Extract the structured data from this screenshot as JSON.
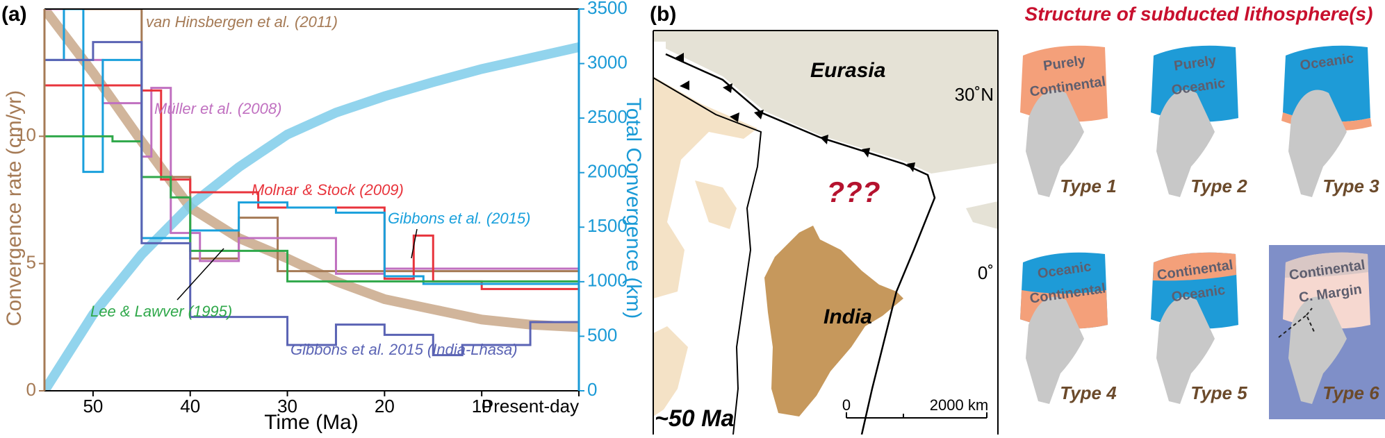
{
  "chart_data": {
    "type": "line",
    "panel_label": "(a)",
    "x_label": "Time (Ma)",
    "y_label": "Convergence rate (cm/yr)",
    "y2_label": "Total Convergence (km)",
    "xlim": [
      55,
      0
    ],
    "xticks": [
      50,
      40,
      30,
      20,
      10,
      {
        "value": 0,
        "label": "Present-day"
      }
    ],
    "ylim": [
      0,
      15
    ],
    "yticks": [
      0,
      5,
      10
    ],
    "y2lim": [
      0,
      3500
    ],
    "y2ticks": [
      0,
      500,
      1000,
      1500,
      2000,
      2500,
      3000,
      3500
    ],
    "series": [
      {
        "color": "#c9a88a",
        "x": [
          55,
          50,
          45,
          40,
          35,
          30,
          25,
          20,
          15,
          10,
          5,
          0
        ],
        "values": [
          15,
          12.5,
          9.8,
          7.2,
          6,
          5.2,
          4.3,
          3.6,
          3.2,
          2.8,
          2.6,
          2.5
        ]
      },
      {
        "color": "#7fcdea",
        "axis": "y2",
        "x": [
          55,
          50,
          45,
          40,
          35,
          30,
          25,
          20,
          15,
          10,
          5,
          0
        ],
        "values": [
          0,
          700,
          1250,
          1700,
          2050,
          2350,
          2550,
          2700,
          2830,
          2950,
          3050,
          3150
        ]
      },
      {
        "name": "van Hinsbergen et al. (2011)",
        "color": "#a57a55",
        "x": [
          55,
          45,
          45,
          40,
          40,
          35,
          35,
          31,
          31,
          0
        ],
        "values": [
          15,
          15,
          8.4,
          8.4,
          5.2,
          5.2,
          6.8,
          6.8,
          4.7,
          4.7
        ]
      },
      {
        "name": "Müller et al. (2008)",
        "color": "#c070c0",
        "x": [
          55,
          53,
          53,
          49,
          49,
          45,
          45,
          44,
          44,
          42,
          42,
          39,
          39,
          35,
          35,
          25,
          25,
          20,
          20,
          0
        ],
        "values": [
          15,
          15,
          13,
          13,
          11.3,
          11.3,
          9.2,
          9.2,
          11.9,
          11.9,
          6.2,
          6.2,
          5.1,
          5.1,
          6,
          6,
          4.6,
          4.6,
          4.8,
          4.8
        ]
      },
      {
        "name": "Molnar & Stock (2009)",
        "color": "#e8343c",
        "x": [
          55,
          45,
          45,
          43,
          43,
          40,
          40,
          33,
          33,
          20,
          20,
          17,
          17,
          15,
          15,
          10,
          10,
          0
        ],
        "values": [
          12,
          12,
          11.8,
          11.8,
          8.3,
          8.3,
          7.8,
          7.8,
          7.2,
          7.2,
          4.4,
          4.4,
          6.1,
          6.1,
          4.3,
          4.3,
          4,
          4
        ]
      },
      {
        "name": "Gibbons et al. (2015)",
        "color": "#19a0dc",
        "x": [
          55,
          53,
          53,
          51,
          51,
          49,
          49,
          45,
          45,
          40,
          40,
          35,
          35,
          30,
          30,
          25,
          25,
          20,
          20,
          16,
          16,
          0
        ],
        "values": [
          13,
          13,
          15,
          15,
          8.6,
          8.6,
          13,
          13,
          6,
          6,
          6.3,
          6.3,
          7.4,
          7.4,
          7.2,
          7.2,
          7,
          7,
          4.5,
          4.5,
          4.2,
          4.2
        ]
      },
      {
        "name": "Lee & Lawver (1995)",
        "color": "#2fa84a",
        "x": [
          55,
          48,
          48,
          45,
          45,
          42,
          42,
          40,
          40,
          30,
          30,
          0
        ],
        "values": [
          10,
          10,
          9.8,
          9.8,
          8.4,
          8.4,
          7.6,
          7.6,
          5.5,
          5.5,
          4.3,
          4.3
        ]
      },
      {
        "name": "Gibbons et al. 2015 (India-Lhasa)",
        "color": "#5a63b4",
        "x": [
          55,
          50,
          50,
          45,
          45,
          40,
          40,
          30,
          30,
          25,
          25,
          20,
          20,
          15,
          15,
          12,
          12,
          5,
          5,
          0
        ],
        "values": [
          13,
          13,
          13.7,
          13.7,
          5.8,
          5.8,
          2.9,
          2.9,
          1.8,
          1.8,
          2.6,
          2.6,
          2.2,
          2.2,
          1.4,
          1.4,
          1.8,
          1.8,
          2.7,
          2.7
        ]
      }
    ]
  },
  "panel_b": {
    "panel_label": "(b)",
    "map": {
      "eurasia": "Eurasia",
      "lat_30": "30˚N",
      "lat_0": "0˚",
      "unknown": "???",
      "india": "India",
      "age": "~50 Ma",
      "scale_start": "0",
      "scale_end": "2000 km"
    },
    "title": "Structure of subducted lithosphere(s)",
    "types": [
      {
        "label": "Type 1",
        "text": [
          "Purely",
          "Continental"
        ]
      },
      {
        "label": "Type 2",
        "text": [
          "Purely",
          "Oceanic"
        ]
      },
      {
        "label": "Type 3",
        "text": [
          "Oceanic"
        ]
      },
      {
        "label": "Type 4",
        "text": [
          "Oceanic",
          "Continental"
        ]
      },
      {
        "label": "Type 5",
        "text": [
          "Continental",
          "Oceanic"
        ]
      },
      {
        "label": "Type 6",
        "text": [
          "Continental",
          "C. Margin"
        ]
      }
    ]
  }
}
